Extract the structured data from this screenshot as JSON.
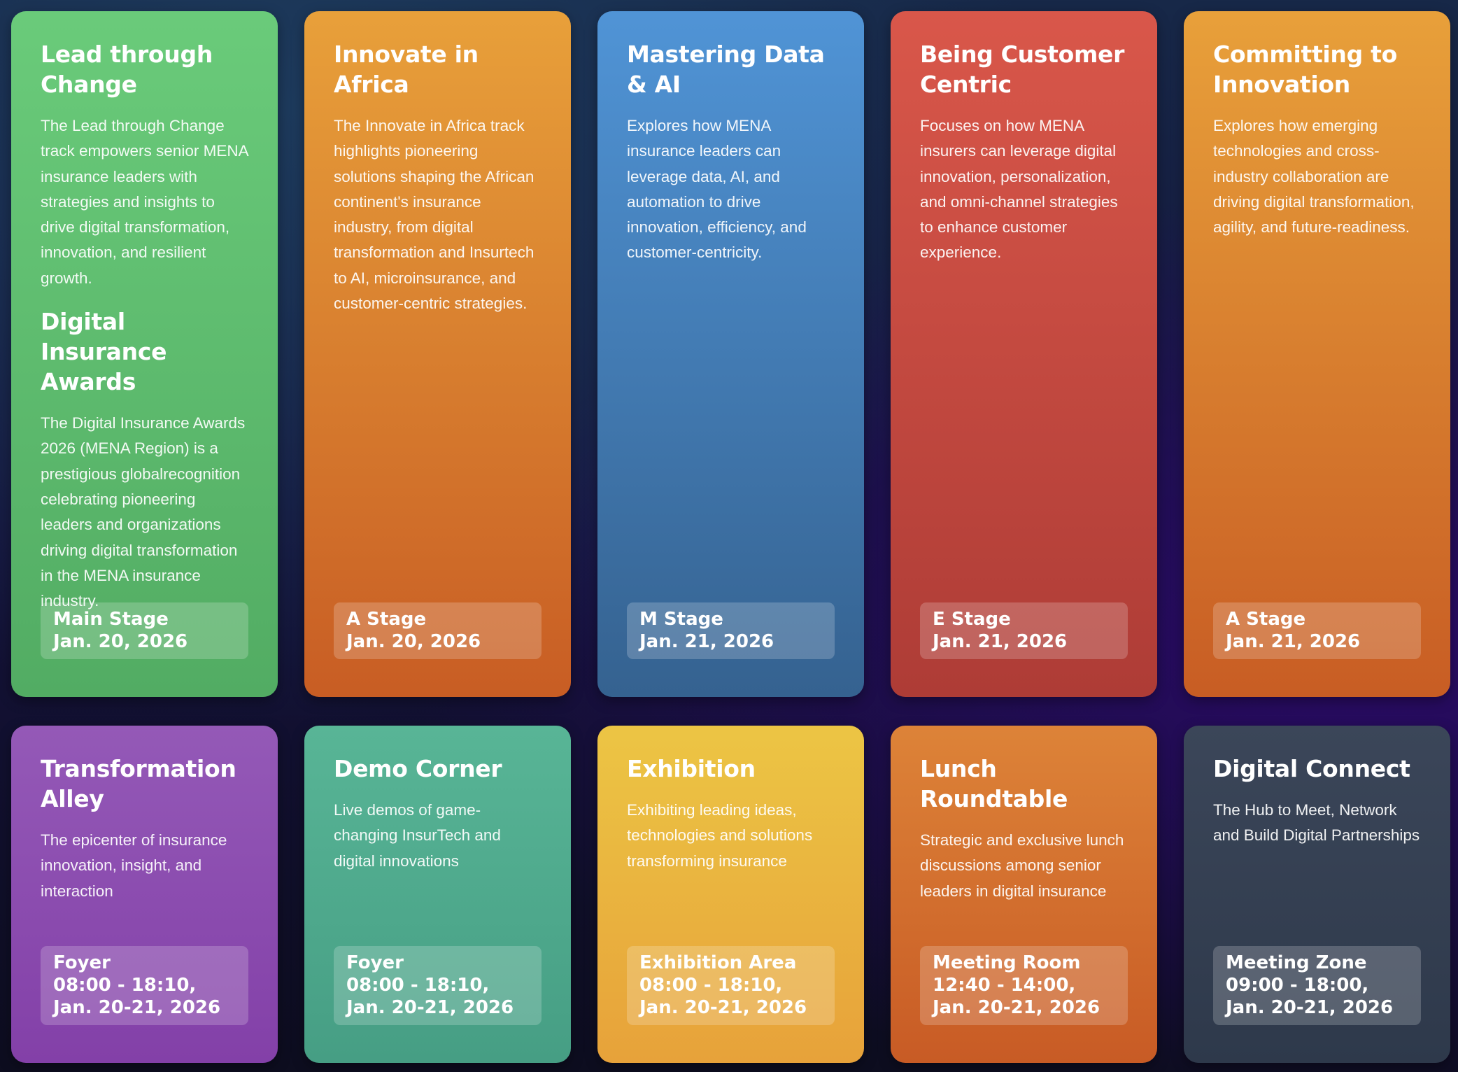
{
  "cards": [
    {
      "title": "Lead through Change",
      "desc": "The Lead through Change track empowers senior MENA insurance leaders with strategies and insights to drive digital transformation, innovation, and resilient growth.",
      "title2": "Digital Insurance Awards",
      "desc2": "The Digital Insurance Awards 2026 (MENA Region) is a prestigious globalrecognition celebrating pioneering leaders and organizations driving digital transformation in the MENA insurance industry.",
      "venue": "Main Stage",
      "date": "Jan. 20, 2026",
      "color": "#5fbd6f"
    },
    {
      "title": "Innovate in Africa",
      "desc": "The Innovate in Africa track highlights pioneering solutions shaping the African continent's insurance industry, from digital transformation and Insurtech to AI, microinsurance, and customer-centric strategies.",
      "venue": "A Stage",
      "date": "Jan. 20, 2026",
      "color": "#e08a31"
    },
    {
      "title": "Mastering Data & AI",
      "desc": "Explores how MENA insurance leaders can leverage data, AI, and automation to drive innovation, efficiency, and customer-centricity.",
      "venue": "M Stage",
      "date": "Jan. 21, 2026",
      "color": "#4680bb"
    },
    {
      "title": "Being Customer Centric",
      "desc": "Focuses on how MENA insurers can leverage digital innovation, personalization, and omni-channel strategies to enhance customer experience.",
      "venue": "E Stage",
      "date": "Jan. 21, 2026",
      "color": "#cc4e43"
    },
    {
      "title": "Committing to Innovation",
      "desc": "Explores how emerging technologies and cross-industry collaboration are driving digital transformation, agility, and future-readiness.",
      "venue": "A Stage",
      "date": "Jan. 21, 2026",
      "color": "#e08a31"
    },
    {
      "title": "Transformation Alley",
      "desc": "The epicenter of insurance innovation, insight, and interaction",
      "venue": "Foyer",
      "time": "08:00 - 18:10,",
      "date": "Jan. 20-21, 2026",
      "color": "#8c4daf"
    },
    {
      "title": "Demo Corner",
      "desc": "Live demos of game-changing InsurTech and digital innovations",
      "venue": "Foyer",
      "time": "08:00 - 18:10,",
      "date": "Jan. 20-21, 2026",
      "color": "#50aa8d"
    },
    {
      "title": "Exhibition",
      "desc": "Exhibiting leading ideas, technologies and solutions transforming insurance",
      "venue": "Exhibition Area",
      "time": "08:00 - 18:10,",
      "date": "Jan. 20-21, 2026",
      "color": "#e9b43f"
    },
    {
      "title": "Lunch Roundtable",
      "desc": "Strategic and exclusive lunch discussions among senior leaders in digital insurance",
      "venue": "Meeting Room",
      "time": "12:40 - 14:00,",
      "date": "Jan. 20-21, 2026",
      "color": "#d6702e"
    },
    {
      "title": "Digital Connect",
      "desc": "The Hub to Meet, Network and Build Digital Partnerships",
      "venue": "Meeting Zone",
      "time": "09:00 - 18:00,",
      "date": "Jan. 20-21, 2026",
      "color": "#354052"
    }
  ]
}
